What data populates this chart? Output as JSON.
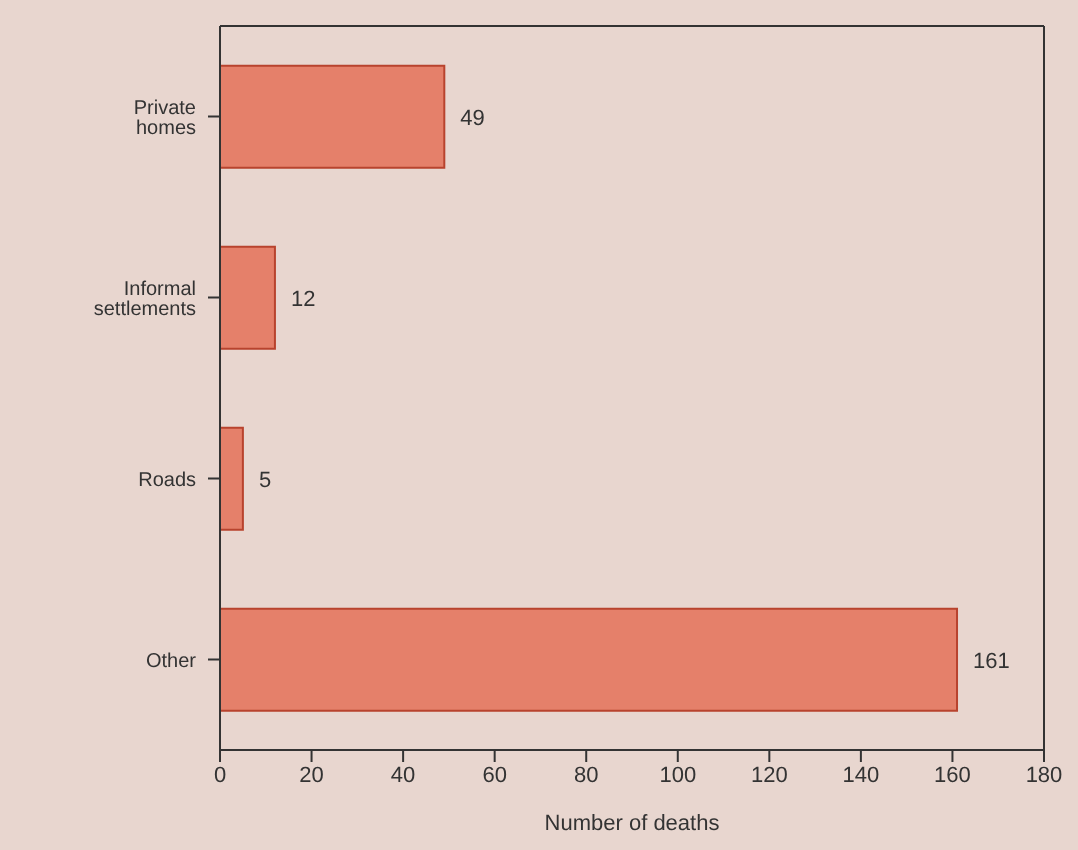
{
  "chart_data": {
    "type": "bar",
    "orientation": "horizontal",
    "xlabel": "Number of deaths",
    "categories": [
      "Private homes",
      "Informal settlements",
      "Roads",
      "Other"
    ],
    "values": [
      49,
      12,
      5,
      161
    ],
    "color": "#e5806a",
    "xlim": [
      0,
      180
    ],
    "xticks": [
      0,
      20,
      40,
      60,
      80,
      100,
      120,
      140,
      160,
      180
    ],
    "data_labels": true
  }
}
